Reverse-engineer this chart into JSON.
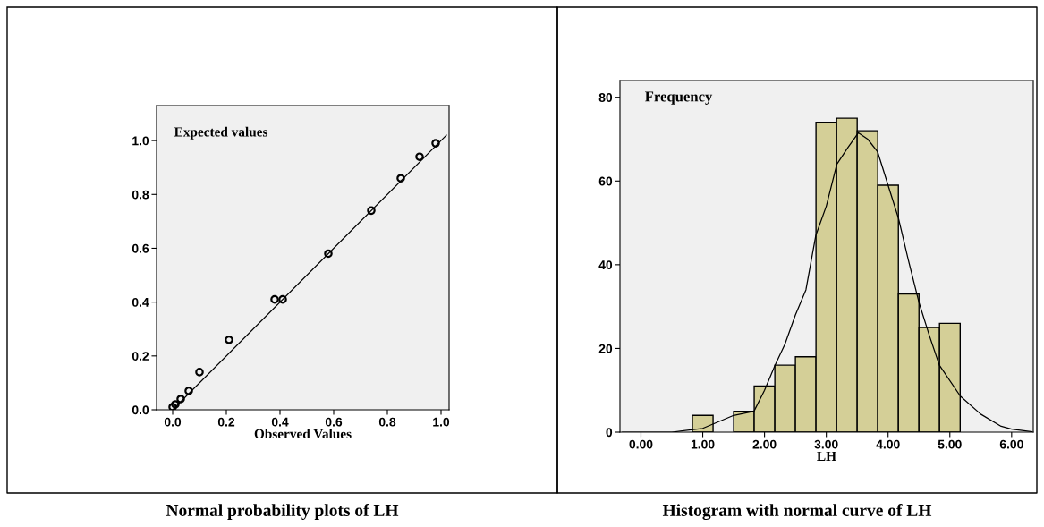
{
  "chart_data": [
    {
      "type": "scatter",
      "xlabel": "Observed Values",
      "ylabel": "Expected values",
      "annotations": [
        "Normal probability plots of LH"
      ],
      "xlim": [
        -0.06,
        1.03
      ],
      "ylim": [
        0,
        1.13
      ],
      "xticks": [
        {
          "value": 0,
          "label": "0.0"
        },
        {
          "value": 0.2,
          "label": "0.2"
        },
        {
          "value": 0.4,
          "label": "0.4"
        },
        {
          "value": 0.6,
          "label": "0.6"
        },
        {
          "value": 0.8,
          "label": "0.8"
        },
        {
          "value": 1,
          "label": "1.0"
        }
      ],
      "yticks": [
        {
          "value": 0,
          "label": "0.0"
        },
        {
          "value": 0.2,
          "label": "0.2"
        },
        {
          "value": 0.4,
          "label": "0.4"
        },
        {
          "value": 0.6,
          "label": "0.6"
        },
        {
          "value": 0.8,
          "label": "0.8"
        },
        {
          "value": 1,
          "label": "1.0"
        }
      ],
      "grid": false,
      "legend": false,
      "series": [
        {
          "color": "#000000",
          "marker": "circle",
          "x": [
            0.0,
            0.01,
            0.03,
            0.06,
            0.1,
            0.21,
            0.38,
            0.41,
            0.58,
            0.74,
            0.85,
            0.92,
            0.98
          ],
          "values": [
            0.01,
            0.02,
            0.04,
            0.07,
            0.14,
            0.26,
            0.41,
            0.41,
            0.58,
            0.74,
            0.86,
            0.94,
            0.99
          ]
        },
        {
          "type": "line",
          "color": "#000000",
          "marker": "none",
          "line_style": "solid",
          "x": [
            0,
            1.02
          ],
          "values": [
            0,
            1.02
          ]
        }
      ]
    },
    {
      "type": "histogram",
      "xlabel": "LH",
      "ylabel": "Frequency",
      "annotations": [
        "Histogram with normal curve of LH"
      ],
      "xlim": [
        -0.34,
        6.35
      ],
      "ylim": [
        0,
        84
      ],
      "xticks": [
        {
          "value": 0,
          "label": "0.00"
        },
        {
          "value": 1,
          "label": "1.00"
        },
        {
          "value": 2,
          "label": "2.00"
        },
        {
          "value": 3,
          "label": "3.00"
        },
        {
          "value": 4,
          "label": "4.00"
        },
        {
          "value": 5,
          "label": "5.00"
        },
        {
          "value": 6,
          "label": "6.00"
        }
      ],
      "yticks": [
        0,
        20,
        40,
        60,
        80
      ],
      "grid": false,
      "legend": false,
      "series": [
        {
          "color": "#d4cf97",
          "bins": [
            0.833,
            1.167,
            1.5,
            1.833,
            2.167,
            2.5,
            2.833,
            3.167,
            3.5,
            3.833,
            4.167,
            4.5,
            4.833,
            5.167
          ],
          "values": [
            4,
            0,
            5,
            11,
            16,
            18,
            74,
            75,
            72,
            59,
            33,
            25,
            26
          ]
        },
        {
          "type": "line",
          "color": "#000000",
          "marker": "none",
          "line_style": "solid",
          "x": [
            -0.3,
            0.5,
            1.0,
            1.5,
            1.83,
            2.0,
            2.17,
            2.33,
            2.5,
            2.67,
            2.83,
            3.0,
            3.17,
            3.35,
            3.52,
            3.67,
            3.83,
            4.0,
            4.17,
            4.33,
            4.5,
            4.67,
            4.83,
            5.17,
            5.5,
            5.83,
            6.0,
            6.33
          ],
          "values": [
            0,
            0,
            0.9,
            4,
            5,
            10,
            16,
            21,
            28,
            34,
            47,
            54,
            64,
            68,
            71.5,
            70,
            67,
            59,
            51,
            41,
            31,
            23,
            16,
            8.6,
            4.3,
            1.4,
            0.7,
            0.1
          ]
        }
      ]
    }
  ]
}
